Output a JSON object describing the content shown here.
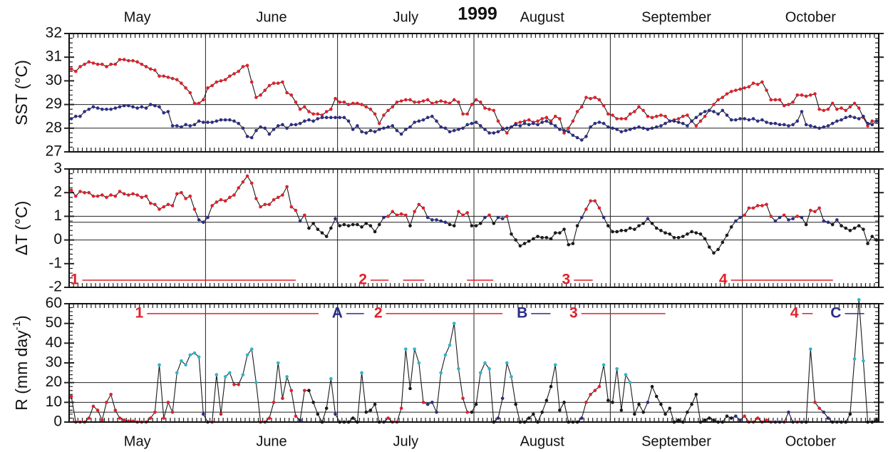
{
  "chart_data": [
    {
      "type": "line",
      "title": "1999",
      "months": [
        "May",
        "June",
        "July",
        "August",
        "September",
        "October"
      ],
      "month_days": [
        31,
        30,
        31,
        31,
        30,
        31
      ],
      "ylabel": "SST (°C)",
      "ylim": [
        27,
        32
      ],
      "yticks": [
        27,
        28,
        29,
        30,
        31,
        32
      ],
      "hlines": [
        28,
        29
      ],
      "line_color": "#1a1a1a",
      "series": [
        {
          "color": "#e0202a",
          "values": [
            30.5,
            30.4,
            30.6,
            30.7,
            30.8,
            30.75,
            30.7,
            30.7,
            30.6,
            30.7,
            30.7,
            30.9,
            30.9,
            30.85,
            30.85,
            30.8,
            30.7,
            30.6,
            30.5,
            30.45,
            30.2,
            30.2,
            30.15,
            30.1,
            30.05,
            29.9,
            29.7,
            29.5,
            29.05,
            29.05,
            29.2,
            29.7,
            29.8,
            29.95,
            30.0,
            30.05,
            30.2,
            30.3,
            30.4,
            30.6,
            30.65,
            29.95,
            29.3,
            29.4,
            29.6,
            29.8,
            29.9,
            29.9,
            29.95,
            29.5,
            29.4,
            29.1,
            28.8,
            28.9,
            28.7,
            28.6,
            28.6,
            28.55,
            28.7,
            28.8,
            29.25,
            29.1,
            29.1,
            29.0,
            29.05,
            29.05,
            29.0,
            28.9,
            28.8,
            28.6,
            28.2,
            28.55,
            28.75,
            28.9,
            29.1,
            29.15,
            29.2,
            29.2,
            29.1,
            29.1,
            29.15,
            29.2,
            29.05,
            29.1,
            29.15,
            29.1,
            29.05,
            29.2,
            29.1,
            28.6,
            28.6,
            29.0,
            29.2,
            29.1,
            28.85,
            28.8,
            28.75,
            28.3,
            28.0,
            27.8,
            28.05,
            28.2,
            28.25,
            28.3,
            28.35,
            28.25,
            28.3,
            28.4,
            28.45,
            28.3,
            28.5,
            28.4,
            27.8,
            28.0,
            28.3,
            28.7,
            28.9,
            29.3,
            29.25,
            29.3,
            29.2,
            28.95,
            28.6,
            28.55,
            28.4,
            28.4,
            28.4,
            28.6,
            28.7,
            28.9,
            28.75,
            28.5,
            28.45,
            28.5,
            28.55,
            28.5,
            28.3,
            28.35,
            28.4,
            28.5,
            28.55,
            28.3,
            28.1,
            28.3,
            28.5,
            28.75,
            29.0,
            29.2,
            29.3,
            29.45,
            29.55,
            29.6,
            29.65,
            29.7,
            29.75,
            29.9,
            29.85,
            29.95,
            29.6,
            29.2,
            29.2,
            29.2,
            28.95,
            29.0,
            29.1,
            29.4,
            29.4,
            29.35,
            29.4,
            29.45,
            28.8,
            28.75,
            28.8,
            29.05,
            28.8,
            28.85,
            28.75,
            28.9,
            29.05,
            28.85,
            28.45,
            28.1,
            28.3,
            28.3
          ]
        },
        {
          "color": "#2b2f86",
          "values": [
            28.4,
            28.5,
            28.5,
            28.7,
            28.8,
            28.9,
            28.85,
            28.8,
            28.8,
            28.8,
            28.85,
            28.9,
            28.95,
            28.95,
            28.9,
            28.85,
            28.9,
            28.85,
            29.0,
            28.95,
            28.9,
            28.65,
            28.7,
            28.1,
            28.1,
            28.05,
            28.15,
            28.1,
            28.15,
            28.3,
            28.25,
            28.25,
            28.25,
            28.3,
            28.35,
            28.35,
            28.35,
            28.3,
            28.2,
            28.0,
            27.65,
            27.6,
            27.9,
            28.05,
            28.0,
            27.75,
            27.95,
            28.1,
            28.15,
            28.0,
            28.15,
            28.15,
            28.2,
            28.3,
            28.35,
            28.3,
            28.4,
            28.45,
            28.45,
            28.45,
            28.45,
            28.45,
            28.45,
            28.3,
            27.95,
            28.1,
            27.85,
            27.8,
            27.9,
            27.85,
            27.95,
            28.0,
            28.05,
            28.1,
            27.9,
            27.75,
            27.95,
            28.05,
            28.25,
            28.3,
            28.35,
            28.45,
            28.5,
            28.3,
            28.05,
            28.0,
            27.85,
            27.9,
            27.95,
            28.0,
            28.15,
            28.2,
            28.25,
            28.1,
            27.95,
            27.8,
            27.8,
            27.85,
            27.95,
            28.0,
            28.05,
            28.15,
            28.1,
            28.2,
            28.15,
            28.2,
            28.15,
            28.25,
            28.3,
            28.2,
            28.1,
            27.95,
            27.9,
            27.85,
            27.7,
            27.6,
            27.5,
            27.65,
            28.05,
            28.2,
            28.25,
            28.2,
            28.05,
            28.0,
            27.95,
            27.85,
            27.9,
            27.95,
            28.0,
            28.05,
            28.0,
            27.95,
            28.0,
            28.05,
            28.1,
            28.2,
            28.3,
            28.3,
            28.25,
            28.2,
            28.1,
            28.3,
            28.45,
            28.6,
            28.7,
            28.75,
            28.7,
            28.6,
            28.75,
            28.55,
            28.35,
            28.35,
            28.4,
            28.4,
            28.35,
            28.4,
            28.3,
            28.35,
            28.25,
            28.2,
            28.2,
            28.15,
            28.15,
            28.1,
            28.15,
            28.3,
            28.7,
            28.15,
            28.1,
            28.05,
            28.0,
            28.05,
            28.1,
            28.2,
            28.3,
            28.35,
            28.45,
            28.5,
            28.45,
            28.4,
            28.5,
            28.2,
            28.15,
            28.3
          ]
        }
      ]
    },
    {
      "type": "line",
      "ylabel": "ΔT (°C)",
      "ylim": [
        -2,
        3
      ],
      "yticks": [
        -2,
        -1,
        0,
        1,
        2,
        3
      ],
      "hlines": [
        0,
        0.75,
        1
      ],
      "line_color": "#1a1a1a",
      "class_thresholds": [
        0.75,
        1
      ],
      "class_colors": [
        "#1a1a1a",
        "#2b2f86",
        "#e0202a"
      ],
      "series": [
        {
          "values": [
            2.1,
            1.85,
            2.05,
            2.0,
            2.0,
            1.85,
            1.85,
            1.9,
            1.8,
            1.9,
            1.85,
            2.05,
            1.95,
            1.9,
            1.95,
            1.9,
            1.8,
            1.85,
            1.55,
            1.5,
            1.3,
            1.4,
            1.5,
            1.45,
            1.95,
            2.0,
            1.75,
            1.85,
            1.3,
            0.85,
            0.75,
            0.95,
            1.45,
            1.6,
            1.7,
            1.65,
            1.8,
            1.9,
            2.2,
            2.45,
            2.7,
            2.4,
            1.75,
            1.4,
            1.5,
            1.5,
            1.7,
            1.8,
            1.9,
            2.25,
            1.4,
            1.25,
            0.8,
            1.05,
            0.5,
            0.7,
            0.45,
            0.3,
            0.15,
            0.5,
            0.9,
            0.6,
            0.65,
            0.6,
            0.65,
            0.65,
            0.55,
            0.7,
            0.6,
            0.35,
            0.65,
            0.95,
            1.0,
            1.2,
            1.05,
            1.1,
            1.05,
            0.6,
            1.2,
            1.5,
            1.35,
            0.95,
            0.85,
            0.85,
            0.8,
            0.75,
            0.65,
            0.6,
            1.2,
            1.05,
            1.15,
            0.6,
            0.6,
            0.7,
            0.95,
            1.05,
            0.7,
            0.95,
            0.9,
            1.0,
            0.25,
            0.0,
            -0.25,
            -0.15,
            -0.05,
            0.05,
            0.15,
            0.1,
            0.1,
            0.05,
            0.3,
            0.3,
            0.45,
            -0.2,
            -0.15,
            0.6,
            0.95,
            1.3,
            1.65,
            1.65,
            1.35,
            0.95,
            0.6,
            0.35,
            0.35,
            0.4,
            0.4,
            0.5,
            0.45,
            0.6,
            0.7,
            0.9,
            0.7,
            0.5,
            0.4,
            0.3,
            0.25,
            0.1,
            0.1,
            0.15,
            0.25,
            0.35,
            0.3,
            0.25,
            0.05,
            -0.3,
            -0.55,
            -0.4,
            -0.1,
            0.2,
            0.55,
            0.8,
            0.95,
            1.05,
            1.35,
            1.35,
            1.45,
            1.45,
            1.5,
            1.0,
            0.8,
            0.95,
            1.05,
            0.85,
            0.9,
            1.0,
            0.95,
            0.65,
            1.25,
            1.2,
            1.35,
            0.8,
            0.75,
            0.65,
            0.85,
            0.6,
            0.5,
            0.4,
            0.5,
            0.6,
            0.45,
            -0.15,
            0.15,
            0.0
          ]
        }
      ],
      "period_level": -1.7,
      "periods": [
        {
          "label": "1",
          "color": "#e0202a",
          "segments": [
            [
              3,
              51.5
            ]
          ]
        },
        {
          "label": "2",
          "color": "#e0202a",
          "segments": [
            [
              68.5,
              72.6
            ],
            [
              75.9,
              80.7
            ],
            [
              90.4,
              96.4
            ]
          ]
        },
        {
          "label": "3",
          "color": "#e0202a",
          "segments": [
            [
              114.7,
              119
            ]
          ]
        },
        {
          "label": "4",
          "color": "#e0202a",
          "segments": [
            [
              150.4,
              173.6
            ]
          ]
        }
      ]
    },
    {
      "type": "line",
      "ylabel": "R (mm day",
      "ylabel_sup": "-1",
      "ylabel_end": ")",
      "ylim": [
        0,
        60
      ],
      "yticks": [
        0,
        10,
        20,
        30,
        40,
        50,
        60
      ],
      "hlines": [
        5,
        10,
        20
      ],
      "line_color": "#1a1a1a",
      "highlight_threshold": 20,
      "highlight_color": "#2ab5c9",
      "series": [
        {
          "values": [
            13,
            0,
            0,
            0,
            2,
            8,
            6,
            1,
            10,
            14,
            6,
            2,
            1,
            0.5,
            0.5,
            0,
            0,
            0,
            2,
            5,
            29,
            2,
            10,
            5,
            25,
            31,
            29,
            34,
            35,
            33,
            4,
            0,
            0,
            24,
            4,
            23,
            25,
            19,
            19,
            24,
            34,
            37,
            20,
            0,
            0,
            2,
            10,
            30,
            12,
            23,
            16,
            3,
            1,
            16,
            16,
            10,
            4,
            0,
            7,
            22,
            4,
            0,
            0,
            0,
            2,
            0,
            25,
            5,
            6,
            9,
            0,
            0,
            2,
            0,
            0,
            7,
            37,
            17,
            37,
            30,
            10,
            9,
            10,
            5,
            25,
            34,
            39,
            50,
            27,
            12,
            5,
            5,
            9,
            25,
            30,
            27,
            0,
            2,
            12,
            30,
            23,
            9,
            0,
            0,
            2,
            4,
            0,
            5,
            11,
            18,
            29,
            6,
            10,
            0,
            0,
            0,
            2,
            10,
            14,
            16,
            18,
            29,
            11,
            10,
            27,
            6,
            24,
            20,
            4,
            9,
            5,
            10,
            18,
            13,
            9,
            4,
            7,
            0,
            1,
            0,
            5,
            9,
            14,
            0,
            1,
            2,
            1,
            0,
            0,
            3,
            2,
            3,
            1,
            3,
            0,
            0,
            2,
            0,
            1,
            0,
            0,
            0,
            0,
            5,
            0,
            0,
            0,
            0,
            37,
            10,
            7,
            5,
            2,
            0,
            0,
            0,
            0,
            4,
            32,
            62,
            31,
            0,
            0,
            1
          ]
        }
      ],
      "period_level": 55,
      "periods": [
        {
          "label": "1",
          "color": "#e0202a",
          "segments": [
            [
              17.7,
              56.7
            ]
          ]
        },
        {
          "label": "A",
          "color": "#2b2f86",
          "segments": [
            [
              63,
              67
            ]
          ]
        },
        {
          "label": "2",
          "color": "#e0202a",
          "segments": [
            [
              72,
              98.5
            ]
          ]
        },
        {
          "label": "B",
          "color": "#2b2f86",
          "segments": [
            [
              105,
              109.4
            ]
          ]
        },
        {
          "label": "3",
          "color": "#e0202a",
          "segments": [
            [
              116.4,
              135.5
            ]
          ]
        },
        {
          "label": "4",
          "color": "#e0202a",
          "segments": [
            [
              166.6,
              169
            ]
          ]
        },
        {
          "label": "C",
          "color": "#2b2f86",
          "segments": [
            [
              176.3,
              180.7
            ]
          ]
        }
      ]
    }
  ]
}
